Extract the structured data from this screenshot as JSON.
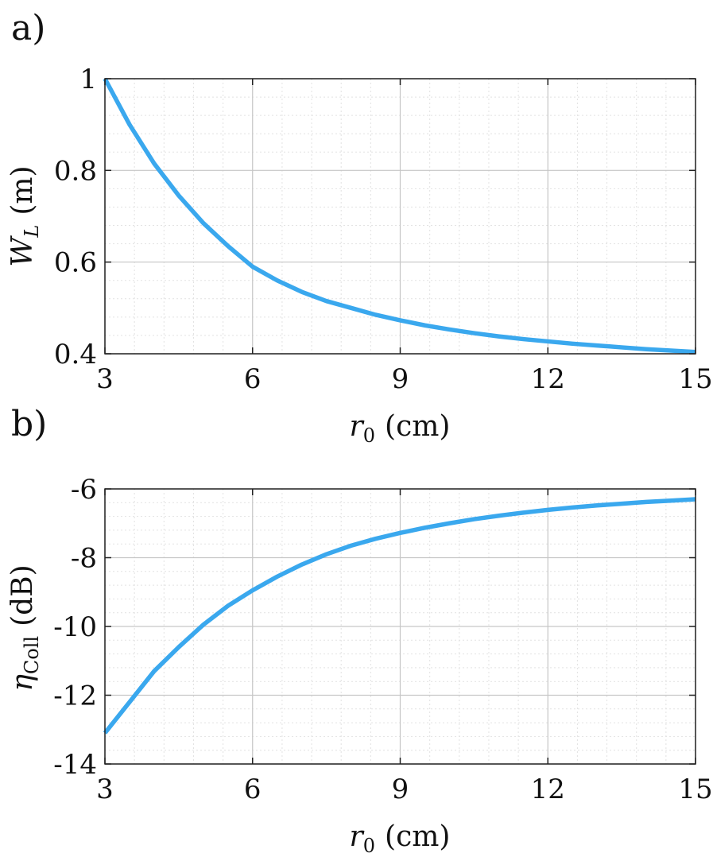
{
  "colors": {
    "line": "#3aa8ee",
    "major_grid": "#c6c6c6",
    "minor_grid": "#e2e2e2",
    "axis": "#222222"
  },
  "chart_data": [
    {
      "panel_label": "a)",
      "type": "line",
      "xlabel": {
        "symbol": "r",
        "subscript": "0",
        "unit": "(cm)"
      },
      "ylabel": {
        "symbol": "W",
        "subscript": "L",
        "unit": "(m)"
      },
      "xlim": [
        3,
        15
      ],
      "ylim": [
        0.4,
        1
      ],
      "xticks": [
        3,
        6,
        9,
        12,
        15
      ],
      "xtick_labels": [
        "3",
        "6",
        "9",
        "12",
        "15"
      ],
      "yticks": [
        0.4,
        0.6,
        0.8,
        1
      ],
      "ytick_labels": [
        "0.4",
        "0.6",
        "0.8",
        "1"
      ],
      "grid": true,
      "minor_grid": true,
      "series": [
        {
          "x": [
            3,
            3.5,
            4,
            4.5,
            5,
            5.5,
            6,
            6.5,
            7,
            7.5,
            8,
            8.5,
            9,
            9.5,
            10,
            10.5,
            11,
            11.5,
            12,
            12.5,
            13,
            13.5,
            14,
            14.5,
            15
          ],
          "y": [
            1.0,
            0.9,
            0.815,
            0.745,
            0.685,
            0.635,
            0.59,
            0.56,
            0.535,
            0.515,
            0.5,
            0.485,
            0.473,
            0.462,
            0.453,
            0.445,
            0.438,
            0.432,
            0.427,
            0.422,
            0.418,
            0.414,
            0.41,
            0.407,
            0.404
          ]
        }
      ]
    },
    {
      "panel_label": "b)",
      "type": "line",
      "xlabel": {
        "symbol": "r",
        "subscript": "0",
        "unit": "(cm)"
      },
      "ylabel": {
        "symbol": "η",
        "subscript": "Coll",
        "unit": "(dB)"
      },
      "xlim": [
        3,
        15
      ],
      "ylim": [
        -14,
        -6
      ],
      "xticks": [
        3,
        6,
        9,
        12,
        15
      ],
      "xtick_labels": [
        "3",
        "6",
        "9",
        "12",
        "15"
      ],
      "yticks": [
        -14,
        -12,
        -10,
        -8,
        -6
      ],
      "ytick_labels": [
        "-14",
        "-12",
        "-10",
        "-8",
        "-6"
      ],
      "grid": true,
      "minor_grid": true,
      "series": [
        {
          "x": [
            3,
            3.5,
            4,
            4.5,
            5,
            5.5,
            6,
            6.5,
            7,
            7.5,
            8,
            8.5,
            9,
            9.5,
            10,
            10.5,
            11,
            11.5,
            12,
            12.5,
            13,
            13.5,
            14,
            14.5,
            15
          ],
          "y": [
            -13.1,
            -12.2,
            -11.3,
            -10.6,
            -9.95,
            -9.4,
            -8.95,
            -8.55,
            -8.2,
            -7.9,
            -7.65,
            -7.45,
            -7.28,
            -7.13,
            -7.0,
            -6.88,
            -6.78,
            -6.69,
            -6.61,
            -6.54,
            -6.48,
            -6.43,
            -6.38,
            -6.34,
            -6.3
          ]
        }
      ]
    }
  ]
}
